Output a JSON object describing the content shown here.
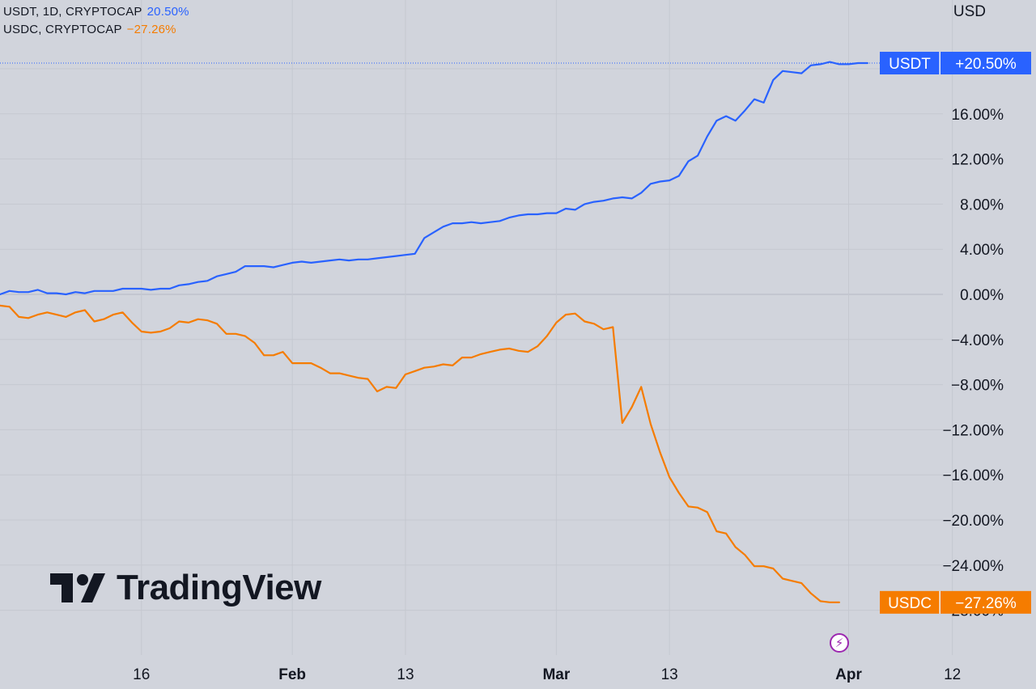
{
  "legend": {
    "usdt": {
      "label": "USDT, 1D, CRYPTOCAP",
      "value": "20.50%"
    },
    "usdc": {
      "label": "USDC, CRYPTOCAP",
      "value": "−27.26%"
    }
  },
  "currency": "USD",
  "brand": {
    "logo_text": "TradingView",
    "logo_icon": "tradingview-logo-icon"
  },
  "badges": {
    "flash_icon": "lightning-icon"
  },
  "chart_data": {
    "type": "line",
    "x_tick_labels": [
      "16",
      "Feb",
      "13",
      "Mar",
      "13",
      "Apr",
      "12"
    ],
    "x_tick_dates": [
      "2023-01-16",
      "2023-02-01",
      "2023-02-13",
      "2023-03-01",
      "2023-03-13",
      "2023-04-01",
      "2023-04-12"
    ],
    "y_tick_labels": [
      "−28.00%",
      "−24.00%",
      "−20.00%",
      "−16.00%",
      "−12.00%",
      "−8.00%",
      "−4.00%",
      "0.00%",
      "4.00%",
      "8.00%",
      "12.00%",
      "16.00%",
      "20.00%"
    ],
    "ylim": [
      -29.5,
      25.5
    ],
    "grid": true,
    "series": [
      {
        "name": "USDT",
        "color": "#2962ff",
        "last_label": "USDT",
        "last_value_label": "+20.50%",
        "values": [
          [
            "2023-01-01",
            0.0
          ],
          [
            "2023-01-02",
            0.3
          ],
          [
            "2023-01-03",
            0.2
          ],
          [
            "2023-01-04",
            0.2
          ],
          [
            "2023-01-05",
            0.4
          ],
          [
            "2023-01-06",
            0.1
          ],
          [
            "2023-01-07",
            0.1
          ],
          [
            "2023-01-08",
            0.0
          ],
          [
            "2023-01-09",
            0.2
          ],
          [
            "2023-01-10",
            0.1
          ],
          [
            "2023-01-11",
            0.3
          ],
          [
            "2023-01-12",
            0.3
          ],
          [
            "2023-01-13",
            0.3
          ],
          [
            "2023-01-14",
            0.5
          ],
          [
            "2023-01-15",
            0.5
          ],
          [
            "2023-01-16",
            0.5
          ],
          [
            "2023-01-17",
            0.4
          ],
          [
            "2023-01-18",
            0.5
          ],
          [
            "2023-01-19",
            0.5
          ],
          [
            "2023-01-20",
            0.8
          ],
          [
            "2023-01-21",
            0.9
          ],
          [
            "2023-01-22",
            1.1
          ],
          [
            "2023-01-23",
            1.2
          ],
          [
            "2023-01-24",
            1.6
          ],
          [
            "2023-01-25",
            1.8
          ],
          [
            "2023-01-26",
            2.0
          ],
          [
            "2023-01-27",
            2.5
          ],
          [
            "2023-01-28",
            2.5
          ],
          [
            "2023-01-29",
            2.5
          ],
          [
            "2023-01-30",
            2.4
          ],
          [
            "2023-01-31",
            2.6
          ],
          [
            "2023-02-01",
            2.8
          ],
          [
            "2023-02-02",
            2.9
          ],
          [
            "2023-02-03",
            2.8
          ],
          [
            "2023-02-04",
            2.9
          ],
          [
            "2023-02-05",
            3.0
          ],
          [
            "2023-02-06",
            3.1
          ],
          [
            "2023-02-07",
            3.0
          ],
          [
            "2023-02-08",
            3.1
          ],
          [
            "2023-02-09",
            3.1
          ],
          [
            "2023-02-10",
            3.2
          ],
          [
            "2023-02-11",
            3.3
          ],
          [
            "2023-02-12",
            3.4
          ],
          [
            "2023-02-13",
            3.5
          ],
          [
            "2023-02-14",
            3.6
          ],
          [
            "2023-02-15",
            5.0
          ],
          [
            "2023-02-16",
            5.5
          ],
          [
            "2023-02-17",
            6.0
          ],
          [
            "2023-02-18",
            6.3
          ],
          [
            "2023-02-19",
            6.3
          ],
          [
            "2023-02-20",
            6.4
          ],
          [
            "2023-02-21",
            6.3
          ],
          [
            "2023-02-22",
            6.4
          ],
          [
            "2023-02-23",
            6.5
          ],
          [
            "2023-02-24",
            6.8
          ],
          [
            "2023-02-25",
            7.0
          ],
          [
            "2023-02-26",
            7.1
          ],
          [
            "2023-02-27",
            7.1
          ],
          [
            "2023-02-28",
            7.2
          ],
          [
            "2023-03-01",
            7.2
          ],
          [
            "2023-03-02",
            7.6
          ],
          [
            "2023-03-03",
            7.5
          ],
          [
            "2023-03-04",
            8.0
          ],
          [
            "2023-03-05",
            8.2
          ],
          [
            "2023-03-06",
            8.3
          ],
          [
            "2023-03-07",
            8.5
          ],
          [
            "2023-03-08",
            8.6
          ],
          [
            "2023-03-09",
            8.5
          ],
          [
            "2023-03-10",
            9.0
          ],
          [
            "2023-03-11",
            9.8
          ],
          [
            "2023-03-12",
            10.0
          ],
          [
            "2023-03-13",
            10.1
          ],
          [
            "2023-03-14",
            10.5
          ],
          [
            "2023-03-15",
            11.8
          ],
          [
            "2023-03-16",
            12.3
          ],
          [
            "2023-03-17",
            14.0
          ],
          [
            "2023-03-18",
            15.4
          ],
          [
            "2023-03-19",
            15.8
          ],
          [
            "2023-03-20",
            15.4
          ],
          [
            "2023-03-21",
            16.3
          ],
          [
            "2023-03-22",
            17.3
          ],
          [
            "2023-03-23",
            17.0
          ],
          [
            "2023-03-24",
            19.0
          ],
          [
            "2023-03-25",
            19.8
          ],
          [
            "2023-03-26",
            19.7
          ],
          [
            "2023-03-27",
            19.6
          ],
          [
            "2023-03-28",
            20.3
          ],
          [
            "2023-03-29",
            20.4
          ],
          [
            "2023-03-30",
            20.6
          ],
          [
            "2023-03-31",
            20.4
          ],
          [
            "2023-04-01",
            20.4
          ],
          [
            "2023-04-02",
            20.5
          ],
          [
            "2023-04-03",
            20.5
          ]
        ]
      },
      {
        "name": "USDC",
        "color": "#f57c00",
        "last_label": "USDC",
        "last_value_label": "−27.26%",
        "values": [
          [
            "2023-01-01",
            -1.0
          ],
          [
            "2023-01-02",
            -1.1
          ],
          [
            "2023-01-03",
            -2.0
          ],
          [
            "2023-01-04",
            -2.1
          ],
          [
            "2023-01-05",
            -1.8
          ],
          [
            "2023-01-06",
            -1.6
          ],
          [
            "2023-01-07",
            -1.8
          ],
          [
            "2023-01-08",
            -2.0
          ],
          [
            "2023-01-09",
            -1.6
          ],
          [
            "2023-01-10",
            -1.4
          ],
          [
            "2023-01-11",
            -2.4
          ],
          [
            "2023-01-12",
            -2.2
          ],
          [
            "2023-01-13",
            -1.8
          ],
          [
            "2023-01-14",
            -1.6
          ],
          [
            "2023-01-15",
            -2.5
          ],
          [
            "2023-01-16",
            -3.3
          ],
          [
            "2023-01-17",
            -3.4
          ],
          [
            "2023-01-18",
            -3.3
          ],
          [
            "2023-01-19",
            -3.0
          ],
          [
            "2023-01-20",
            -2.4
          ],
          [
            "2023-01-21",
            -2.5
          ],
          [
            "2023-01-22",
            -2.2
          ],
          [
            "2023-01-23",
            -2.3
          ],
          [
            "2023-01-24",
            -2.6
          ],
          [
            "2023-01-25",
            -3.5
          ],
          [
            "2023-01-26",
            -3.5
          ],
          [
            "2023-01-27",
            -3.7
          ],
          [
            "2023-01-28",
            -4.3
          ],
          [
            "2023-01-29",
            -5.4
          ],
          [
            "2023-01-30",
            -5.4
          ],
          [
            "2023-01-31",
            -5.1
          ],
          [
            "2023-02-01",
            -6.1
          ],
          [
            "2023-02-02",
            -6.1
          ],
          [
            "2023-02-03",
            -6.1
          ],
          [
            "2023-02-04",
            -6.5
          ],
          [
            "2023-02-05",
            -7.0
          ],
          [
            "2023-02-06",
            -7.0
          ],
          [
            "2023-02-07",
            -7.2
          ],
          [
            "2023-02-08",
            -7.4
          ],
          [
            "2023-02-09",
            -7.5
          ],
          [
            "2023-02-10",
            -8.6
          ],
          [
            "2023-02-11",
            -8.2
          ],
          [
            "2023-02-12",
            -8.3
          ],
          [
            "2023-02-13",
            -7.1
          ],
          [
            "2023-02-14",
            -6.8
          ],
          [
            "2023-02-15",
            -6.5
          ],
          [
            "2023-02-16",
            -6.4
          ],
          [
            "2023-02-17",
            -6.2
          ],
          [
            "2023-02-18",
            -6.3
          ],
          [
            "2023-02-19",
            -5.6
          ],
          [
            "2023-02-20",
            -5.6
          ],
          [
            "2023-02-21",
            -5.3
          ],
          [
            "2023-02-22",
            -5.1
          ],
          [
            "2023-02-23",
            -4.9
          ],
          [
            "2023-02-24",
            -4.8
          ],
          [
            "2023-02-25",
            -5.0
          ],
          [
            "2023-02-26",
            -5.1
          ],
          [
            "2023-02-27",
            -4.6
          ],
          [
            "2023-02-28",
            -3.7
          ],
          [
            "2023-03-01",
            -2.5
          ],
          [
            "2023-03-02",
            -1.8
          ],
          [
            "2023-03-03",
            -1.7
          ],
          [
            "2023-03-04",
            -2.4
          ],
          [
            "2023-03-05",
            -2.6
          ],
          [
            "2023-03-06",
            -3.1
          ],
          [
            "2023-03-07",
            -2.9
          ],
          [
            "2023-03-08",
            -11.4
          ],
          [
            "2023-03-09",
            -10.0
          ],
          [
            "2023-03-10",
            -8.2
          ],
          [
            "2023-03-11",
            -11.5
          ],
          [
            "2023-03-12",
            -14.0
          ],
          [
            "2023-03-13",
            -16.2
          ],
          [
            "2023-03-14",
            -17.6
          ],
          [
            "2023-03-15",
            -18.8
          ],
          [
            "2023-03-16",
            -18.9
          ],
          [
            "2023-03-17",
            -19.3
          ],
          [
            "2023-03-18",
            -21.0
          ],
          [
            "2023-03-19",
            -21.2
          ],
          [
            "2023-03-20",
            -22.4
          ],
          [
            "2023-03-21",
            -23.1
          ],
          [
            "2023-03-22",
            -24.1
          ],
          [
            "2023-03-23",
            -24.1
          ],
          [
            "2023-03-24",
            -24.3
          ],
          [
            "2023-03-25",
            -25.2
          ],
          [
            "2023-03-26",
            -25.4
          ],
          [
            "2023-03-27",
            -25.6
          ],
          [
            "2023-03-28",
            -26.5
          ],
          [
            "2023-03-29",
            -27.2
          ],
          [
            "2023-03-30",
            -27.3
          ],
          [
            "2023-03-31",
            -27.3
          ]
        ]
      }
    ]
  }
}
